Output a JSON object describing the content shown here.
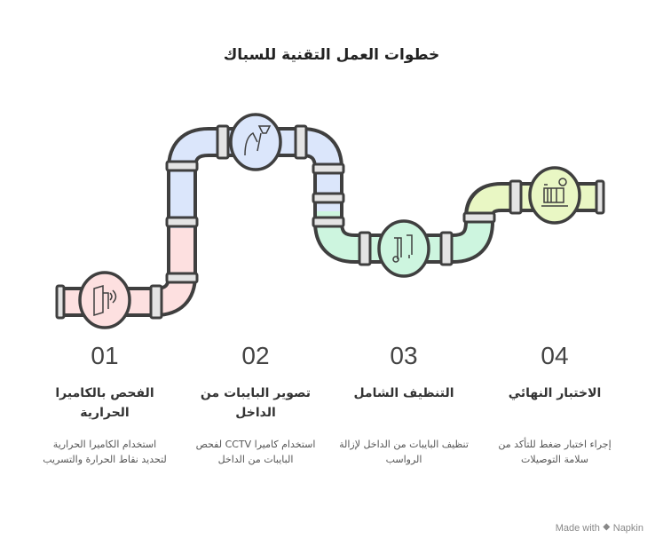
{
  "title": "خطوات العمل التقنية للسباك",
  "colors": {
    "pink": "#fde0e0",
    "blue": "#dbe6fb",
    "green": "#cdf5df",
    "yellow": "#e9f7c4",
    "outline": "#3f3f3f"
  },
  "steps": [
    {
      "number": "01",
      "title": "الفحص بالكاميرا الحرارية",
      "description": "استخدام الكاميرا الحرارية لتحديد نقاط الحرارة والتسريب",
      "icon": "thermal-camera-icon"
    },
    {
      "number": "02",
      "title": "تصوير البايبات من الداخل",
      "description": "استخدام كاميرا CCTV لفحص البايبات من الداخل",
      "icon": "cctv-camera-icon"
    },
    {
      "number": "03",
      "title": "التنظيف الشامل",
      "description": "تنظيف البايبات من الداخل لإزالة الرواسب",
      "icon": "pressure-washer-icon"
    },
    {
      "number": "04",
      "title": "الاختبار النهائي",
      "description": "إجراء اختبار ضغط للتأكد من سلامة التوصيلات",
      "icon": "pressure-gauge-icon"
    }
  ],
  "footer": "Made with ⯁ Napkin"
}
